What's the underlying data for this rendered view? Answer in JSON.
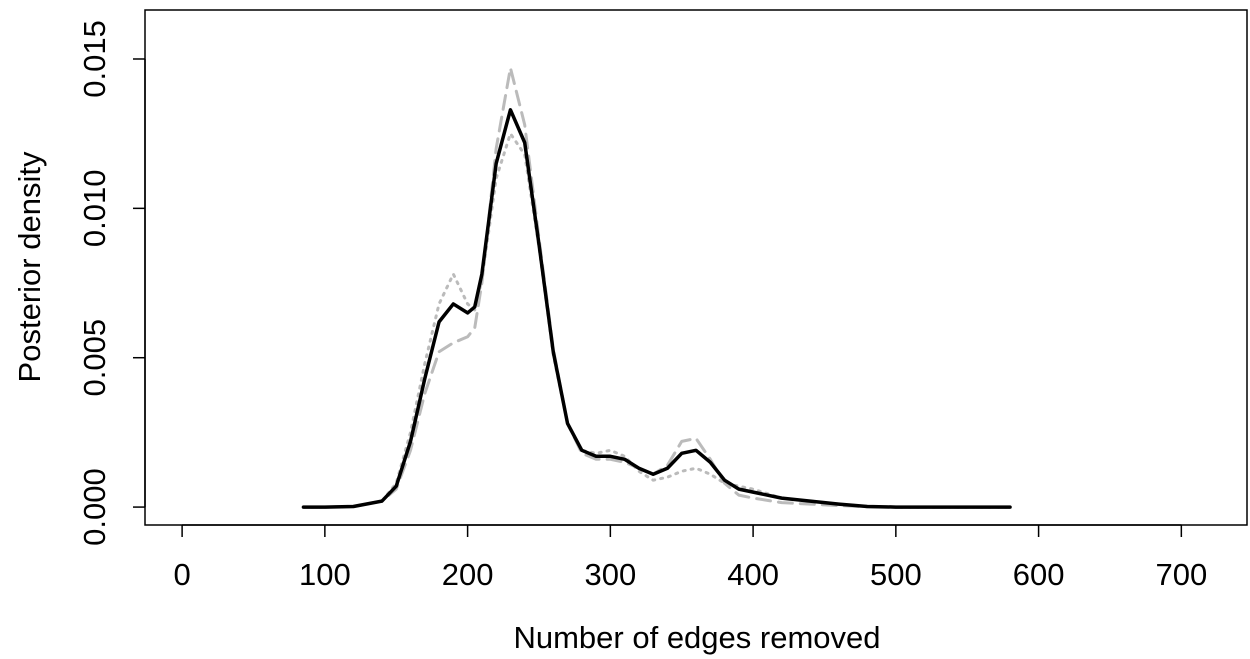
{
  "chart_data": {
    "type": "line",
    "x_label": "Number of edges removed",
    "y_label": "Posterior density",
    "x": [
      85,
      100,
      120,
      140,
      150,
      160,
      170,
      180,
      190,
      200,
      205,
      210,
      220,
      230,
      240,
      250,
      260,
      270,
      280,
      290,
      300,
      310,
      320,
      330,
      340,
      350,
      360,
      370,
      380,
      390,
      400,
      420,
      440,
      460,
      480,
      500,
      540,
      580
    ],
    "series": [
      {
        "color": "#000000",
        "dash": "solid",
        "values": [
          0,
          0,
          2e-05,
          0.0002,
          0.0007,
          0.0022,
          0.0043,
          0.0062,
          0.0068,
          0.0065,
          0.0067,
          0.0078,
          0.0115,
          0.0133,
          0.0122,
          0.0088,
          0.0052,
          0.0028,
          0.0019,
          0.0017,
          0.0017,
          0.0016,
          0.0013,
          0.0011,
          0.0013,
          0.0018,
          0.0019,
          0.0015,
          0.0009,
          0.0006,
          0.0005,
          0.0003,
          0.0002,
          0.0001,
          2e-05,
          0,
          0,
          0
        ]
      },
      {
        "color": "#bbbbbb",
        "dash": "dashed",
        "values": [
          0,
          0,
          2e-05,
          0.0002,
          0.0006,
          0.0019,
          0.0038,
          0.0052,
          0.0055,
          0.0057,
          0.006,
          0.0075,
          0.012,
          0.0147,
          0.0128,
          0.009,
          0.0053,
          0.0028,
          0.0018,
          0.0016,
          0.0016,
          0.0015,
          0.0013,
          0.0011,
          0.0014,
          0.0022,
          0.0023,
          0.0016,
          0.0008,
          0.0004,
          0.0003,
          0.00015,
          0.0001,
          5e-05,
          1e-05,
          0,
          0,
          0
        ]
      },
      {
        "color": "#bbbbbb",
        "dash": "dotted",
        "values": [
          0,
          0,
          2e-05,
          0.0002,
          0.0008,
          0.0025,
          0.0048,
          0.0068,
          0.0078,
          0.0068,
          0.0066,
          0.0076,
          0.011,
          0.0125,
          0.0118,
          0.0087,
          0.0051,
          0.0028,
          0.0019,
          0.0018,
          0.0019,
          0.0017,
          0.0012,
          0.0009,
          0.001,
          0.0012,
          0.0013,
          0.0011,
          0.0008,
          0.0007,
          0.0006,
          0.0003,
          0.0002,
          0.0001,
          2e-05,
          0,
          0,
          0
        ]
      }
    ],
    "xlim": [
      -26,
      746
    ],
    "ylim": [
      -0.0006,
      0.01664
    ],
    "xticks": [
      0,
      100,
      200,
      300,
      400,
      500,
      600,
      700
    ],
    "yticks": [
      {
        "value": 0,
        "label": "0.000"
      },
      {
        "value": 0.005,
        "label": "0.005"
      },
      {
        "value": 0.01,
        "label": "0.010"
      },
      {
        "value": 0.015,
        "label": "0.015"
      }
    ],
    "grid": false
  }
}
